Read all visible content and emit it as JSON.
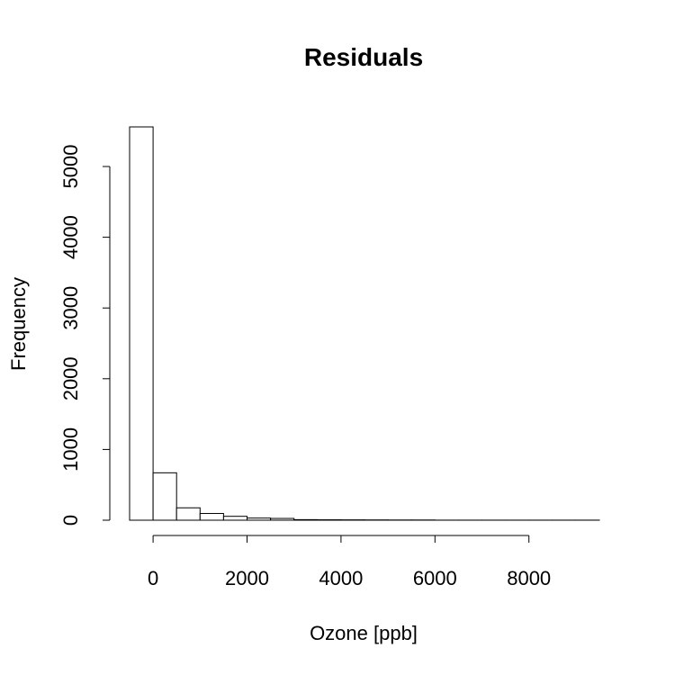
{
  "chart_data": {
    "type": "bar",
    "title": "Residuals",
    "xlabel": "Ozone [ppb]",
    "ylabel": "Frequency",
    "bin_width": 500,
    "bins": [
      {
        "start": -500,
        "end": 0,
        "value": 5560
      },
      {
        "start": 0,
        "end": 500,
        "value": 670
      },
      {
        "start": 500,
        "end": 1000,
        "value": 175
      },
      {
        "start": 1000,
        "end": 1500,
        "value": 95
      },
      {
        "start": 1500,
        "end": 2000,
        "value": 55
      },
      {
        "start": 2000,
        "end": 2500,
        "value": 30
      },
      {
        "start": 2500,
        "end": 3000,
        "value": 25
      },
      {
        "start": 3000,
        "end": 3500,
        "value": 8
      },
      {
        "start": 3500,
        "end": 4000,
        "value": 6
      },
      {
        "start": 4000,
        "end": 4500,
        "value": 5
      },
      {
        "start": 4500,
        "end": 5000,
        "value": 4
      },
      {
        "start": 5000,
        "end": 5500,
        "value": 3
      },
      {
        "start": 5500,
        "end": 6000,
        "value": 3
      },
      {
        "start": 6000,
        "end": 6500,
        "value": 1
      },
      {
        "start": 6500,
        "end": 7000,
        "value": 1
      },
      {
        "start": 7000,
        "end": 7500,
        "value": 1
      },
      {
        "start": 7500,
        "end": 8000,
        "value": 1
      },
      {
        "start": 8000,
        "end": 8500,
        "value": 1
      },
      {
        "start": 8500,
        "end": 9000,
        "value": 1
      },
      {
        "start": 9000,
        "end": 9500,
        "value": 1
      }
    ],
    "x_ticks": [
      0,
      2000,
      4000,
      6000,
      8000
    ],
    "y_ticks": [
      0,
      1000,
      2000,
      3000,
      4000,
      5000
    ],
    "xlim": [
      -500,
      9500
    ],
    "ylim": [
      0,
      5560
    ],
    "grid": false,
    "legend": "none"
  }
}
